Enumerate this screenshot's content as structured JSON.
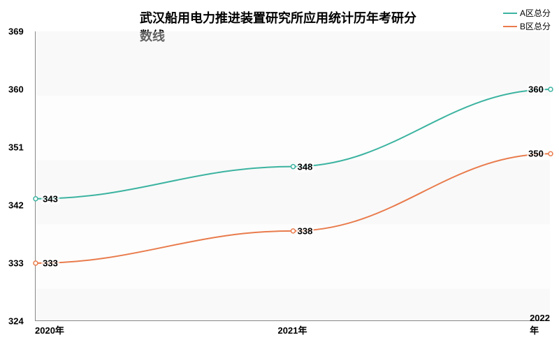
{
  "chart": {
    "type": "line",
    "title": "武汉船用电力推进装置研究所应用统计历年考研分数线",
    "title_fontsize": 18,
    "label_fontsize": 13,
    "background_color": "#ffffff",
    "grid_band_colors": [
      "#f0f0f0",
      "#fcfcfc"
    ],
    "border_color": "#888888",
    "x_categories": [
      "2020年",
      "2021年",
      "2022年"
    ],
    "y_axis": {
      "min": 324,
      "max": 369,
      "ticks": [
        324,
        333,
        342,
        351,
        360,
        369
      ]
    },
    "legend": {
      "position": "top-right"
    },
    "series": [
      {
        "name": "A区总分",
        "color": "#3bb3a0",
        "line_width": 2,
        "values": [
          343,
          348,
          360
        ],
        "smooth": true
      },
      {
        "name": "B区总分",
        "color": "#e97b4c",
        "line_width": 2,
        "values": [
          333,
          338,
          350
        ],
        "smooth": true
      }
    ]
  }
}
